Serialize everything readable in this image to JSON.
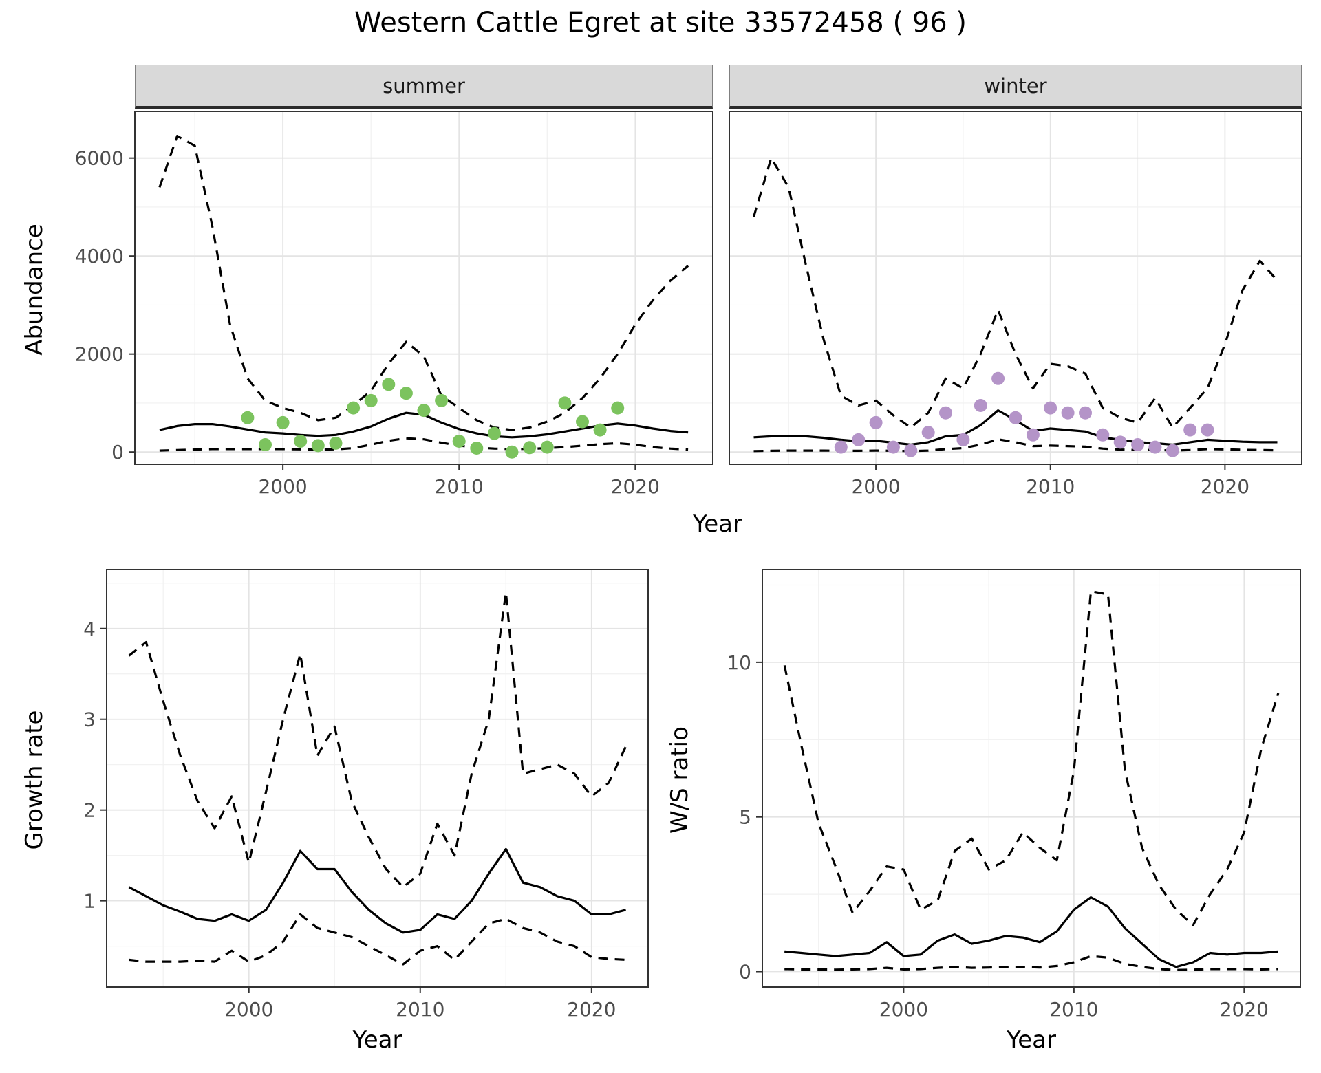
{
  "title": "Western Cattle Egret at site 33572458 ( 96 )",
  "labels": {
    "year": "Year",
    "abundance": "Abundance",
    "growth_rate": "Growth rate",
    "ws_ratio": "W/S ratio",
    "facet_summer": "summer",
    "facet_winter": "winter"
  },
  "colors": {
    "summer_point": "#7CC35E",
    "winter_point": "#B494C8",
    "line": "#000000",
    "grid_major": "#E4E4E4",
    "grid_minor": "#F1F1F1",
    "panel_border": "#333333",
    "axis_text": "#4D4D4D",
    "strip_bg": "#D9D9D9"
  },
  "chart_data": [
    {
      "id": "abundance_summer",
      "type": "line",
      "facet": "summer",
      "xlabel": "Year",
      "ylabel": "Abundance",
      "xlim": [
        1991.6,
        2024.4
      ],
      "ylim": [
        -250,
        6950
      ],
      "xticks": [
        2000,
        2010,
        2020
      ],
      "yticks": [
        0,
        2000,
        4000,
        6000
      ],
      "x": [
        1993,
        1994,
        1995,
        1996,
        1997,
        1998,
        1999,
        2000,
        2001,
        2002,
        2003,
        2004,
        2005,
        2006,
        2007,
        2008,
        2009,
        2010,
        2011,
        2012,
        2013,
        2014,
        2015,
        2016,
        2017,
        2018,
        2019,
        2020,
        2021,
        2022,
        2023
      ],
      "series": [
        {
          "name": "upper_ci",
          "style": "dashed",
          "values": [
            5400,
            6450,
            6250,
            4600,
            2600,
            1500,
            1050,
            900,
            800,
            650,
            700,
            950,
            1250,
            1800,
            2250,
            1950,
            1150,
            900,
            650,
            500,
            450,
            500,
            620,
            800,
            1100,
            1500,
            2000,
            2600,
            3100,
            3500,
            3800
          ]
        },
        {
          "name": "lower_ci",
          "style": "dashed",
          "values": [
            30,
            40,
            50,
            60,
            60,
            60,
            60,
            60,
            55,
            50,
            55,
            80,
            150,
            230,
            280,
            260,
            190,
            130,
            90,
            70,
            60,
            65,
            80,
            100,
            130,
            160,
            180,
            150,
            100,
            70,
            50
          ]
        },
        {
          "name": "mean",
          "style": "solid",
          "values": [
            450,
            530,
            570,
            570,
            520,
            460,
            400,
            380,
            350,
            330,
            350,
            420,
            520,
            680,
            800,
            760,
            600,
            470,
            380,
            320,
            300,
            320,
            360,
            420,
            480,
            540,
            580,
            540,
            480,
            430,
            400
          ]
        }
      ],
      "points": {
        "name": "observed_summer",
        "color": "#7CC35E",
        "x": [
          1998,
          1999,
          2000,
          2001,
          2002,
          2003,
          2004,
          2005,
          2006,
          2007,
          2008,
          2009,
          2010,
          2011,
          2012,
          2013,
          2014,
          2015,
          2016,
          2017,
          2018,
          2019
        ],
        "y": [
          700,
          150,
          600,
          220,
          130,
          180,
          900,
          1050,
          1380,
          1200,
          850,
          1050,
          220,
          80,
          380,
          0,
          90,
          100,
          1000,
          620,
          450,
          900
        ]
      }
    },
    {
      "id": "abundance_winter",
      "type": "line",
      "facet": "winter",
      "xlabel": "Year",
      "ylabel": "Abundance",
      "xlim": [
        1991.6,
        2024.4
      ],
      "ylim": [
        -250,
        6950
      ],
      "xticks": [
        2000,
        2010,
        2020
      ],
      "yticks": [
        0,
        2000,
        4000,
        6000
      ],
      "x": [
        1993,
        1994,
        1995,
        1996,
        1997,
        1998,
        1999,
        2000,
        2001,
        2002,
        2003,
        2004,
        2005,
        2006,
        2007,
        2008,
        2009,
        2010,
        2011,
        2012,
        2013,
        2014,
        2015,
        2016,
        2017,
        2018,
        2019,
        2020,
        2021,
        2022,
        2023
      ],
      "series": [
        {
          "name": "upper_ci",
          "style": "dashed",
          "values": [
            4800,
            6000,
            5400,
            3800,
            2300,
            1150,
            950,
            1050,
            750,
            500,
            800,
            1500,
            1300,
            2000,
            2900,
            2000,
            1300,
            1800,
            1750,
            1600,
            900,
            700,
            600,
            1100,
            500,
            900,
            1300,
            2200,
            3300,
            3900,
            3500
          ]
        },
        {
          "name": "lower_ci",
          "style": "dashed",
          "values": [
            20,
            25,
            30,
            30,
            30,
            25,
            25,
            30,
            25,
            20,
            30,
            60,
            80,
            150,
            260,
            200,
            120,
            130,
            120,
            110,
            70,
            50,
            40,
            45,
            30,
            40,
            60,
            55,
            45,
            40,
            35
          ]
        },
        {
          "name": "mean",
          "style": "solid",
          "values": [
            300,
            320,
            330,
            320,
            290,
            250,
            220,
            230,
            190,
            150,
            200,
            320,
            350,
            550,
            850,
            650,
            430,
            480,
            450,
            420,
            300,
            250,
            200,
            180,
            150,
            200,
            250,
            230,
            210,
            200,
            200
          ]
        }
      ],
      "points": {
        "name": "observed_winter",
        "color": "#B494C8",
        "x": [
          1998,
          1999,
          2000,
          2001,
          2002,
          2003,
          2004,
          2005,
          2006,
          2007,
          2008,
          2009,
          2010,
          2011,
          2012,
          2013,
          2014,
          2015,
          2016,
          2017,
          2018,
          2019
        ],
        "y": [
          100,
          250,
          600,
          100,
          30,
          400,
          800,
          250,
          950,
          1500,
          700,
          350,
          900,
          800,
          800,
          350,
          200,
          150,
          100,
          30,
          450,
          450
        ]
      }
    },
    {
      "id": "growth_rate",
      "type": "line",
      "xlabel": "Year",
      "ylabel": "Growth rate",
      "xlim": [
        1991.7,
        2023.3
      ],
      "ylim": [
        0.05,
        4.65
      ],
      "xticks": [
        2000,
        2010,
        2020
      ],
      "yticks": [
        1,
        2,
        3,
        4
      ],
      "x": [
        1993,
        1994,
        1995,
        1996,
        1997,
        1998,
        1999,
        2000,
        2001,
        2002,
        2003,
        2004,
        2005,
        2006,
        2007,
        2008,
        2009,
        2010,
        2011,
        2012,
        2013,
        2014,
        2015,
        2016,
        2017,
        2018,
        2019,
        2020,
        2021,
        2022
      ],
      "series": [
        {
          "name": "upper_ci",
          "style": "dashed",
          "values": [
            3.7,
            3.85,
            3.2,
            2.6,
            2.1,
            1.8,
            2.15,
            1.42,
            2.2,
            3.0,
            3.72,
            2.6,
            2.92,
            2.1,
            1.7,
            1.35,
            1.15,
            1.3,
            1.85,
            1.5,
            2.4,
            3.0,
            4.4,
            2.4,
            2.45,
            2.5,
            2.4,
            2.15,
            2.3,
            2.7
          ]
        },
        {
          "name": "lower_ci",
          "style": "dashed",
          "values": [
            0.35,
            0.33,
            0.33,
            0.33,
            0.34,
            0.33,
            0.45,
            0.33,
            0.4,
            0.55,
            0.85,
            0.7,
            0.65,
            0.6,
            0.5,
            0.4,
            0.3,
            0.45,
            0.5,
            0.35,
            0.55,
            0.75,
            0.8,
            0.7,
            0.65,
            0.55,
            0.5,
            0.38,
            0.36,
            0.35
          ]
        },
        {
          "name": "mean",
          "style": "solid",
          "values": [
            1.15,
            1.05,
            0.95,
            0.88,
            0.8,
            0.78,
            0.85,
            0.78,
            0.9,
            1.2,
            1.55,
            1.35,
            1.35,
            1.1,
            0.9,
            0.75,
            0.65,
            0.68,
            0.85,
            0.8,
            1.0,
            1.3,
            1.57,
            1.2,
            1.15,
            1.05,
            1.0,
            0.85,
            0.85,
            0.9
          ]
        }
      ]
    },
    {
      "id": "ws_ratio",
      "type": "line",
      "xlabel": "Year",
      "ylabel": "W/S ratio",
      "xlim": [
        1991.7,
        2023.3
      ],
      "ylim": [
        -0.5,
        13.0
      ],
      "xticks": [
        2000,
        2010,
        2020
      ],
      "yticks": [
        0,
        5,
        10
      ],
      "x": [
        1993,
        1994,
        1995,
        1996,
        1997,
        1998,
        1999,
        2000,
        2001,
        2002,
        2003,
        2004,
        2005,
        2006,
        2007,
        2008,
        2009,
        2010,
        2011,
        2012,
        2013,
        2014,
        2015,
        2016,
        2017,
        2018,
        2019,
        2020,
        2021,
        2022
      ],
      "series": [
        {
          "name": "upper_ci",
          "style": "dashed",
          "values": [
            9.9,
            7.3,
            4.8,
            3.4,
            1.9,
            2.6,
            3.4,
            3.3,
            2.0,
            2.3,
            3.9,
            4.3,
            3.3,
            3.6,
            4.5,
            4.0,
            3.6,
            6.5,
            12.3,
            12.2,
            6.5,
            4.0,
            2.8,
            2.0,
            1.5,
            2.5,
            3.3,
            4.5,
            7.2,
            9.0
          ]
        },
        {
          "name": "lower_ci",
          "style": "dashed",
          "values": [
            0.08,
            0.07,
            0.07,
            0.06,
            0.07,
            0.08,
            0.12,
            0.07,
            0.08,
            0.12,
            0.15,
            0.12,
            0.13,
            0.15,
            0.15,
            0.13,
            0.18,
            0.3,
            0.5,
            0.45,
            0.25,
            0.15,
            0.08,
            0.05,
            0.06,
            0.08,
            0.08,
            0.08,
            0.07,
            0.08
          ]
        },
        {
          "name": "mean",
          "style": "solid",
          "values": [
            0.65,
            0.6,
            0.55,
            0.5,
            0.55,
            0.6,
            0.95,
            0.5,
            0.55,
            1.0,
            1.2,
            0.9,
            1.0,
            1.15,
            1.1,
            0.95,
            1.3,
            2.0,
            2.4,
            2.1,
            1.4,
            0.9,
            0.4,
            0.15,
            0.3,
            0.6,
            0.55,
            0.6,
            0.6,
            0.65
          ]
        }
      ]
    }
  ]
}
